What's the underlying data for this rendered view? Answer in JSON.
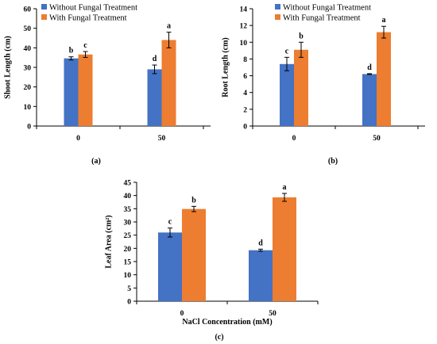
{
  "colors": {
    "without": "#4472C4",
    "with": "#ED7D31",
    "axis": "#000000"
  },
  "chart_data": [
    {
      "type": "bar",
      "panel_label": "(a)",
      "title": "",
      "categories": [
        "0",
        "50"
      ],
      "series": [
        {
          "name": "Without Fungal Treatment",
          "values": [
            34.6,
            29.0
          ],
          "errors": [
            0.8,
            2.2
          ],
          "labels": [
            "b",
            "d"
          ]
        },
        {
          "name": "With Fungal Treatment",
          "values": [
            36.6,
            44.0
          ],
          "errors": [
            1.5,
            4.0
          ],
          "labels": [
            "c",
            "a"
          ]
        }
      ],
      "xlabel": "",
      "ylabel": "Shoot Length (cm)",
      "ylim": [
        0,
        60
      ],
      "yticks": [
        "0",
        "10",
        "20",
        "30",
        "40",
        "50",
        "60"
      ],
      "grid": false,
      "legend": "top-left"
    },
    {
      "type": "bar",
      "panel_label": "(b)",
      "title": "",
      "categories": [
        "0",
        "50"
      ],
      "series": [
        {
          "name": "Without Fungal Treatment",
          "values": [
            7.4,
            6.2
          ],
          "errors": [
            0.8,
            0.05
          ],
          "labels": [
            "c",
            "d"
          ]
        },
        {
          "name": "With Fungal Treatment",
          "values": [
            9.1,
            11.2
          ],
          "errors": [
            0.9,
            0.7
          ],
          "labels": [
            "b",
            "a"
          ]
        }
      ],
      "xlabel": "",
      "ylabel": "Root Length (cm)",
      "ylim": [
        0,
        14
      ],
      "yticks": [
        "0",
        "2",
        "4",
        "6",
        "8",
        "10",
        "12",
        "14"
      ],
      "grid": false,
      "legend": "top-left"
    },
    {
      "type": "bar",
      "panel_label": "(c)",
      "title": "",
      "categories": [
        "0",
        "50"
      ],
      "series": [
        {
          "name": "Without Fungal Treatment",
          "values": [
            26.0,
            19.3
          ],
          "errors": [
            1.7,
            0.4
          ],
          "labels": [
            "c",
            "d"
          ]
        },
        {
          "name": "With Fungal Treatment",
          "values": [
            34.9,
            39.3
          ],
          "errors": [
            1.0,
            1.5
          ],
          "labels": [
            "b",
            "a"
          ]
        }
      ],
      "xlabel": "NaCl Concentration (mM)",
      "ylabel": "Leaf Area (cm²)",
      "ylim": [
        0,
        45
      ],
      "yticks": [
        "0",
        "5",
        "10",
        "15",
        "20",
        "25",
        "30",
        "35",
        "40",
        "45"
      ],
      "grid": false,
      "legend": "none"
    }
  ]
}
